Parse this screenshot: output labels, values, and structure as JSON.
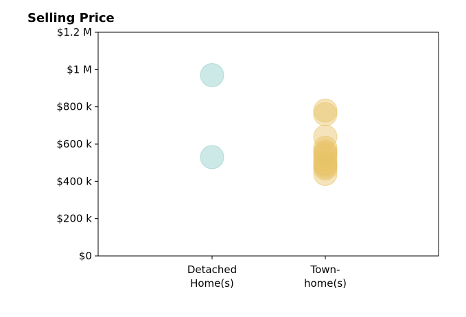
{
  "chart_data": {
    "type": "scatter",
    "title": "Selling Price",
    "xlabel": "",
    "ylabel": "",
    "categories": [
      "Detached\nHome(s)",
      "Town-\nhome(s)"
    ],
    "ylim": [
      0,
      1200000
    ],
    "yticks": [
      0,
      200000,
      400000,
      600000,
      800000,
      1000000,
      1200000
    ],
    "ytick_labels": [
      "$0",
      "$200 k",
      "$400 k",
      "$600 k",
      "$800 k",
      "$1 M",
      "$1.2 M"
    ],
    "grid": false,
    "series": [
      {
        "category_index": 0,
        "color": "#8ecfc9",
        "values": [
          970000,
          530000
        ]
      },
      {
        "category_index": 1,
        "color": "#e8c468",
        "values": [
          440000,
          470000,
          480000,
          490000,
          500000,
          520000,
          540000,
          550000,
          560000,
          580000,
          640000,
          760000,
          780000
        ]
      }
    ]
  }
}
